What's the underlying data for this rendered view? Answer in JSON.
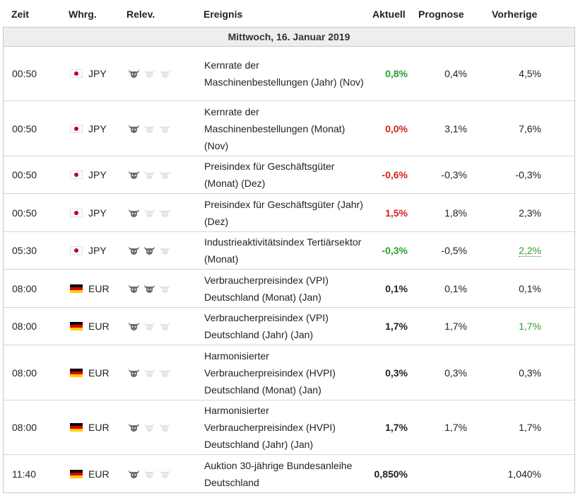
{
  "headers": {
    "time": "Zeit",
    "currency": "Whrg.",
    "relevance": "Relev.",
    "event": "Ereignis",
    "actual": "Aktuell",
    "forecast": "Prognose",
    "previous": "Vorherige"
  },
  "day_label": "Mittwoch, 16. Januar 2019",
  "colors": {
    "positive": "#2d9e2d",
    "negative": "#d81e1e",
    "bull_active": "#6e6e6e",
    "bull_inactive": "#e3e3e3"
  },
  "rows": [
    {
      "time": "00:50",
      "currency": "JPY",
      "flag": "jp-flag-icon",
      "relevance": 1,
      "event": "Kernrate der Maschinenbestellungen (Jahr) (Nov)",
      "actual": "0,8%",
      "actual_status": "pos",
      "forecast": "0,4%",
      "previous": "4,5%",
      "previous_status": ""
    },
    {
      "time": "00:50",
      "currency": "JPY",
      "flag": "jp-flag-icon",
      "relevance": 1,
      "event": "Kernrate der Maschinenbestellungen (Monat) (Nov)",
      "actual": "0,0%",
      "actual_status": "neg",
      "forecast": "3,1%",
      "previous": "7,6%",
      "previous_status": ""
    },
    {
      "time": "00:50",
      "currency": "JPY",
      "flag": "jp-flag-icon",
      "relevance": 1,
      "event": "Preisindex für Geschäftsgüter (Monat) (Dez)",
      "actual": "-0,6%",
      "actual_status": "neg",
      "forecast": "-0,3%",
      "previous": "-0,3%",
      "previous_status": ""
    },
    {
      "time": "00:50",
      "currency": "JPY",
      "flag": "jp-flag-icon",
      "relevance": 1,
      "event": "Preisindex für Geschäftsgüter (Jahr) (Dez)",
      "actual": "1,5%",
      "actual_status": "neg",
      "forecast": "1,8%",
      "previous": "2,3%",
      "previous_status": ""
    },
    {
      "time": "05:30",
      "currency": "JPY",
      "flag": "jp-flag-icon",
      "relevance": 2,
      "event": "Industrieaktivitätsindex Tertiärsektor (Monat)",
      "actual": "-0,3%",
      "actual_status": "pos",
      "forecast": "-0,5%",
      "previous": "2,2%",
      "previous_status": "revised"
    },
    {
      "time": "08:00",
      "currency": "EUR",
      "flag": "de-flag-icon",
      "relevance": 2,
      "event": "Verbraucherpreisindex (VPI) Deutschland (Monat) (Jan)",
      "actual": "0,1%",
      "actual_status": "",
      "forecast": "0,1%",
      "previous": "0,1%",
      "previous_status": ""
    },
    {
      "time": "08:00",
      "currency": "EUR",
      "flag": "de-flag-icon",
      "relevance": 1,
      "event": "Verbraucherpreisindex (VPI) Deutschland (Jahr) (Jan)",
      "actual": "1,7%",
      "actual_status": "",
      "forecast": "1,7%",
      "previous": "1,7%",
      "previous_status": "pos"
    },
    {
      "time": "08:00",
      "currency": "EUR",
      "flag": "de-flag-icon",
      "relevance": 1,
      "event": "Harmonisierter Verbraucherpreisindex (HVPI) Deutschland (Monat) (Jan)",
      "actual": "0,3%",
      "actual_status": "",
      "forecast": "0,3%",
      "previous": "0,3%",
      "previous_status": ""
    },
    {
      "time": "08:00",
      "currency": "EUR",
      "flag": "de-flag-icon",
      "relevance": 1,
      "event": "Harmonisierter Verbraucherpreisindex (HVPI) Deutschland (Jahr) (Jan)",
      "actual": "1,7%",
      "actual_status": "",
      "forecast": "1,7%",
      "previous": "1,7%",
      "previous_status": ""
    },
    {
      "time": "11:40",
      "currency": "EUR",
      "flag": "de-flag-icon",
      "relevance": 1,
      "event": "Auktion 30-jährige Bundesanleihe Deutschland",
      "actual": "0,850%",
      "actual_status": "",
      "forecast": "",
      "previous": "1,040%",
      "previous_status": ""
    }
  ]
}
